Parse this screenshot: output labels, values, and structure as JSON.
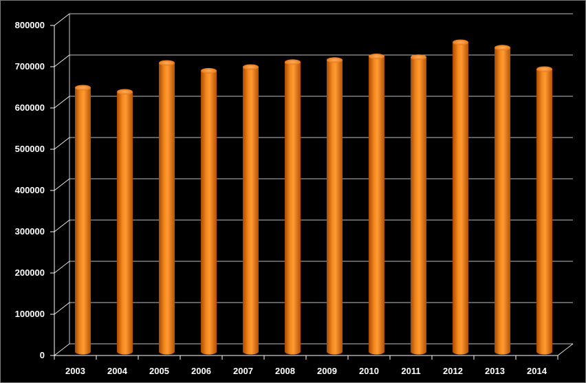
{
  "chart_data": {
    "type": "bar",
    "categories": [
      "2003",
      "2004",
      "2005",
      "2006",
      "2007",
      "2008",
      "2009",
      "2010",
      "2011",
      "2012",
      "2013",
      "2014"
    ],
    "values": [
      640000,
      630000,
      700000,
      681000,
      690000,
      702000,
      707000,
      716000,
      714000,
      750000,
      737000,
      685000
    ],
    "ylim": [
      0,
      800000
    ],
    "yticks": [
      "0",
      "100000",
      "200000",
      "300000",
      "400000",
      "500000",
      "600000",
      "700000",
      "800000"
    ],
    "grid": true,
    "legend": "none",
    "colors": {
      "bar": "#f07a10",
      "background": "#000000",
      "grid": "#ffffff",
      "text": "#ffffff"
    }
  }
}
